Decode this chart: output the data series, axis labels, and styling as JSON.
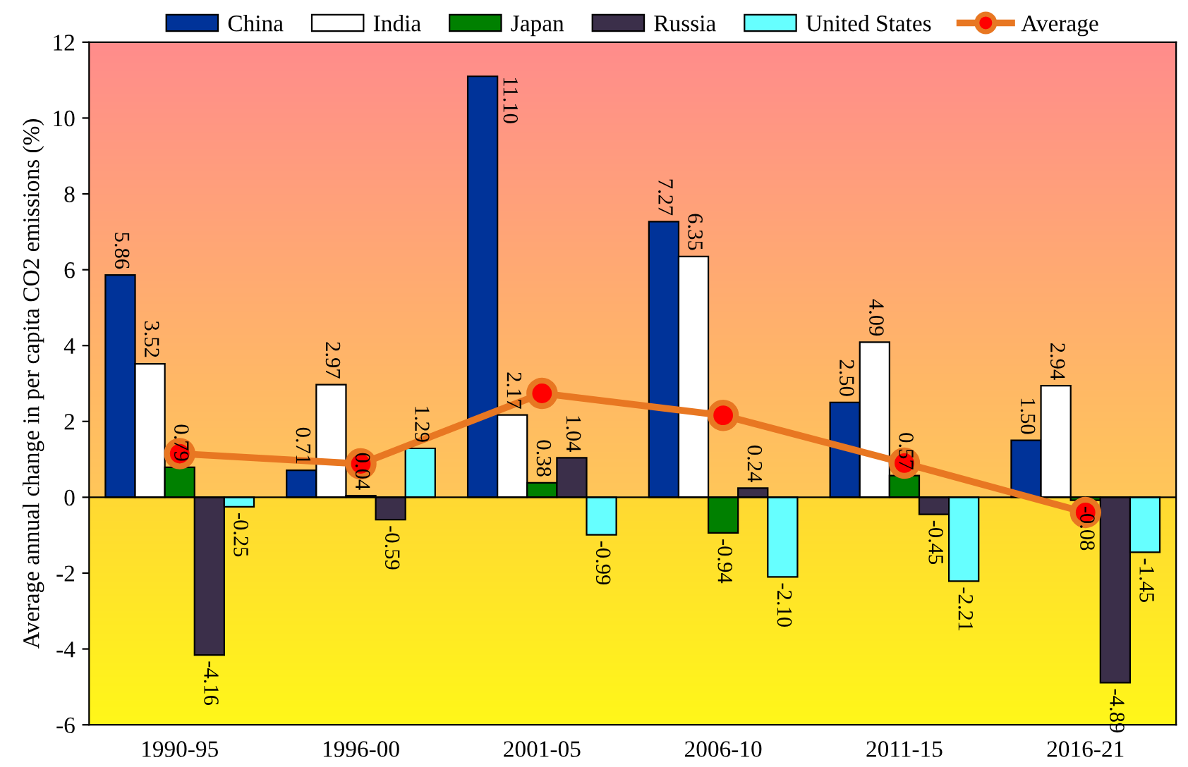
{
  "chart_data": {
    "type": "bar",
    "ylabel": "Average annual change in per capita CO2 emissions (%)",
    "categories": [
      "1990-95",
      "1996-00",
      "2001-05",
      "2006-10",
      "2011-15",
      "2016-21"
    ],
    "series": [
      {
        "name": "China",
        "color": "#003399",
        "values": [
          5.86,
          0.71,
          11.1,
          7.27,
          2.5,
          1.5
        ],
        "value_labels": [
          "5.86",
          "0.71",
          "11.10",
          "7.27",
          "2.50",
          "1.50"
        ]
      },
      {
        "name": "India",
        "color": "#ffffff",
        "values": [
          3.52,
          2.97,
          2.17,
          6.35,
          4.09,
          2.94
        ],
        "value_labels": [
          "3.52",
          "2.97",
          "2.17",
          "6.35",
          "4.09",
          "2.94"
        ]
      },
      {
        "name": "Japan",
        "color": "#008000",
        "values": [
          0.79,
          0.04,
          0.38,
          -0.94,
          0.57,
          -0.08
        ],
        "value_labels": [
          "0.79",
          "0.04",
          "0.38",
          "-0.94",
          "0.57",
          "-0.08"
        ]
      },
      {
        "name": "Russia",
        "color": "#3b2f4a",
        "values": [
          -4.16,
          -0.59,
          1.04,
          0.24,
          -0.45,
          -4.89
        ],
        "value_labels": [
          "-4.16",
          "-0.59",
          "1.04",
          "0.24",
          "-0.45",
          "-4.89"
        ]
      },
      {
        "name": "United States",
        "color": "#66ffff",
        "values": [
          -0.25,
          1.29,
          -0.99,
          -2.1,
          -2.21,
          -1.45
        ],
        "value_labels": [
          "-0.25",
          "1.29",
          "-0.99",
          "-2.10",
          "-2.21",
          "-1.45"
        ]
      },
      {
        "name": "Average",
        "type": "line",
        "color": "#e87722",
        "marker": "circle",
        "values": [
          1.15,
          0.88,
          2.74,
          2.16,
          0.9,
          -0.4
        ]
      }
    ],
    "ylim": [
      -6,
      12
    ],
    "yticks": [
      -6,
      -4,
      -2,
      0,
      2,
      4,
      6,
      8,
      10,
      12
    ],
    "legend": "top"
  }
}
